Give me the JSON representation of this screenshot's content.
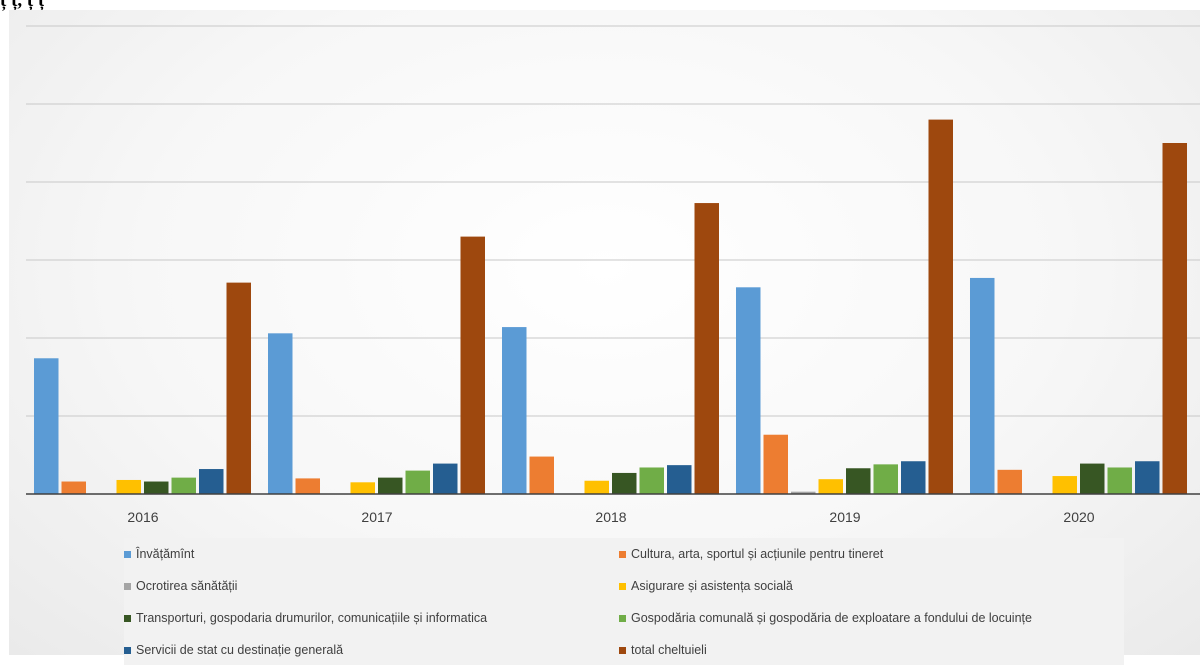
{
  "header": {
    "caption": "ț ț, ț ț"
  },
  "chart_data": {
    "type": "bar",
    "title": "",
    "xlabel": "",
    "ylabel": "",
    "categories": [
      "2016",
      "2017",
      "2018",
      "2019",
      "2020"
    ],
    "ylim": [
      0,
      6
    ],
    "grid": true,
    "legend_position": "bottom",
    "series": [
      {
        "name": "Învățămînt",
        "color": "#5b9bd5",
        "values": [
          1.74,
          2.06,
          2.14,
          2.65,
          2.77
        ]
      },
      {
        "name": "Cultura, arta, sportul și acțiunile pentru tineret",
        "color": "#ed7d31",
        "values": [
          0.16,
          0.2,
          0.48,
          0.76,
          0.31
        ]
      },
      {
        "name": "Ocrotirea sănătății",
        "color": "#a5a5a5",
        "values": [
          0.0,
          0.0,
          0.0,
          0.03,
          0.0
        ]
      },
      {
        "name": "Asigurare și asistența socială",
        "color": "#ffc000",
        "values": [
          0.18,
          0.15,
          0.17,
          0.19,
          0.23
        ]
      },
      {
        "name": "Transporturi, gospodaria drumurilor, comunicațiile și informatica",
        "color": "#375623",
        "values": [
          0.16,
          0.21,
          0.27,
          0.33,
          0.39
        ]
      },
      {
        "name": "Gospodăria comunală și gospodăria de exploatare a fondului de locuințe",
        "color": "#70ad47",
        "values": [
          0.21,
          0.3,
          0.34,
          0.38,
          0.34
        ]
      },
      {
        "name": "Servicii de stat cu destinație generală",
        "color": "#255e91",
        "values": [
          0.32,
          0.39,
          0.37,
          0.42,
          0.42
        ]
      },
      {
        "name": "total cheltuieli",
        "color": "#9e480e",
        "values": [
          2.71,
          3.3,
          3.73,
          4.8,
          4.5
        ]
      }
    ]
  }
}
